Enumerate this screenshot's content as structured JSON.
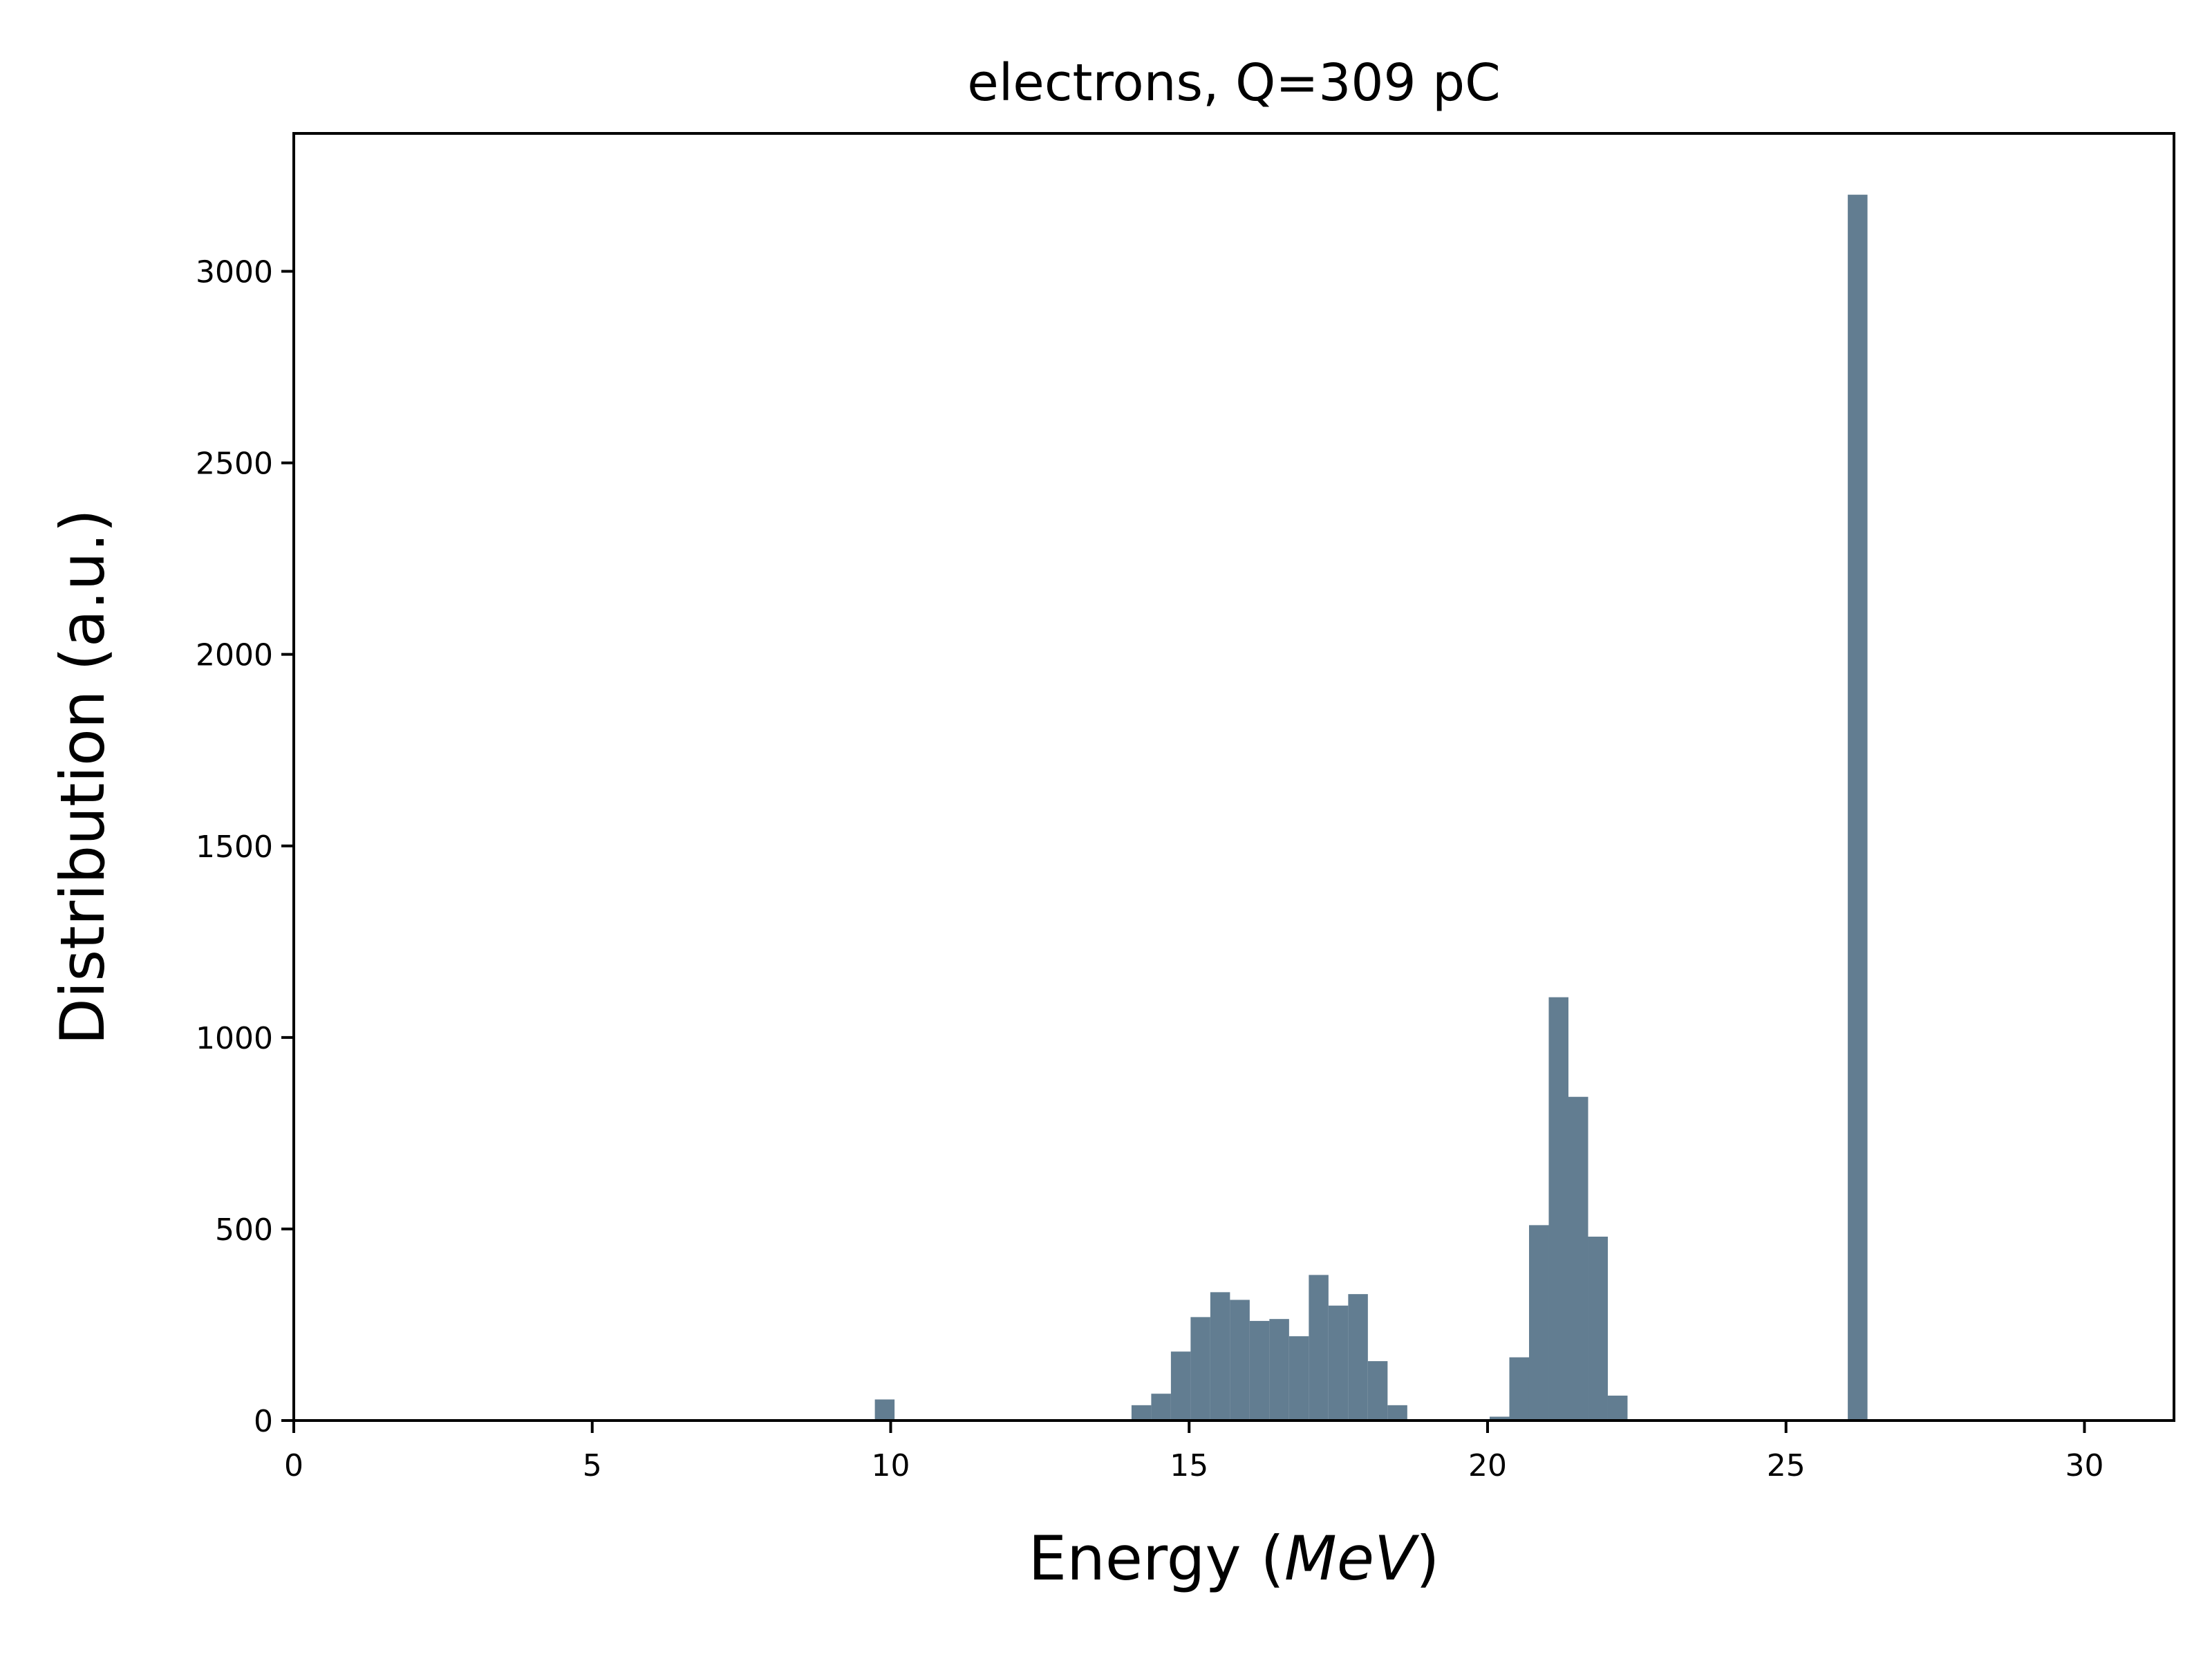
{
  "chart_data": {
    "type": "bar",
    "title": "electrons, Q=309 pC",
    "xlabel": {
      "prefix": "Energy (",
      "unit": "MeV",
      "suffix": ")"
    },
    "ylabel": "Distribution (a.u.)",
    "xlim": [
      0,
      31.5
    ],
    "ylim": [
      0,
      3360
    ],
    "xticks": [
      0,
      5,
      10,
      15,
      20,
      25,
      30
    ],
    "yticks": [
      0,
      500,
      1000,
      1500,
      2000,
      2500,
      3000
    ],
    "bin_width": 0.33,
    "bar_color": "#627d91",
    "grid": false,
    "legend": "none",
    "bins": [
      {
        "x": 9.9,
        "value": 55
      },
      {
        "x": 14.2,
        "value": 40
      },
      {
        "x": 14.53,
        "value": 70
      },
      {
        "x": 14.86,
        "value": 180
      },
      {
        "x": 15.19,
        "value": 270
      },
      {
        "x": 15.52,
        "value": 335
      },
      {
        "x": 15.85,
        "value": 315
      },
      {
        "x": 16.18,
        "value": 260
      },
      {
        "x": 16.51,
        "value": 265
      },
      {
        "x": 16.84,
        "value": 220
      },
      {
        "x": 17.17,
        "value": 380
      },
      {
        "x": 17.5,
        "value": 300
      },
      {
        "x": 17.83,
        "value": 330
      },
      {
        "x": 18.16,
        "value": 155
      },
      {
        "x": 18.49,
        "value": 40
      },
      {
        "x": 20.2,
        "value": 10
      },
      {
        "x": 20.53,
        "value": 165
      },
      {
        "x": 20.86,
        "value": 510
      },
      {
        "x": 21.19,
        "value": 1105
      },
      {
        "x": 21.52,
        "value": 845
      },
      {
        "x": 21.85,
        "value": 480
      },
      {
        "x": 22.18,
        "value": 65
      },
      {
        "x": 26.2,
        "value": 3200
      }
    ]
  }
}
